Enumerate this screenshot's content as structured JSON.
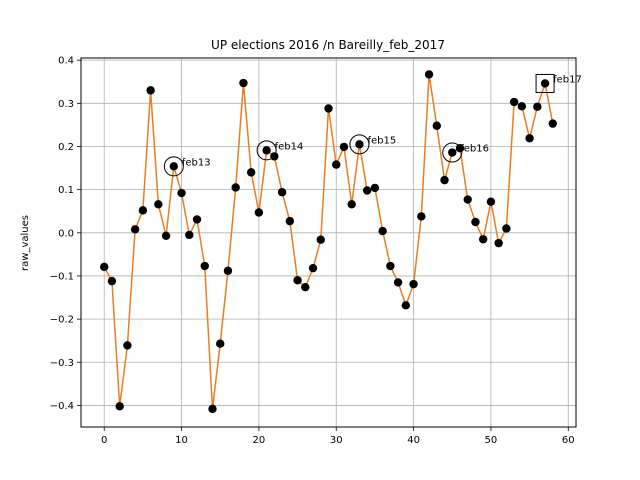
{
  "chart_data": {
    "type": "line",
    "title": "UP elections 2016 /n Bareilly_feb_2017",
    "xlabel": "",
    "ylabel": "raw_values",
    "xlim": [
      -3,
      61
    ],
    "ylim": [
      -0.45,
      0.405
    ],
    "xticks": [
      0,
      10,
      20,
      30,
      40,
      50,
      60
    ],
    "yticks": [
      -0.4,
      -0.3,
      -0.2,
      -0.1,
      0.0,
      0.1,
      0.2,
      0.3,
      0.4
    ],
    "xtick_labels": [
      "0",
      "10",
      "20",
      "30",
      "40",
      "50",
      "60"
    ],
    "ytick_labels": [
      "−0.4",
      "−0.3",
      "−0.2",
      "−0.1",
      "0.0",
      "0.1",
      "0.2",
      "0.3",
      "0.4"
    ],
    "grid": true,
    "line_color": "#e87d25",
    "marker_color": "#000000",
    "x": [
      0,
      1,
      2,
      3,
      4,
      5,
      6,
      7,
      8,
      9,
      10,
      11,
      12,
      13,
      14,
      15,
      16,
      17,
      18,
      19,
      20,
      21,
      22,
      23,
      24,
      25,
      26,
      27,
      28,
      29,
      30,
      31,
      32,
      33,
      34,
      35,
      36,
      37,
      38,
      39,
      40,
      41,
      42,
      43,
      44,
      45,
      46,
      47,
      48,
      49,
      50,
      51,
      52,
      53,
      54,
      55,
      56,
      57,
      58
    ],
    "values": [
      -0.079,
      -0.112,
      -0.402,
      -0.261,
      0.008,
      0.052,
      0.33,
      0.066,
      -0.007,
      0.154,
      0.092,
      -0.005,
      0.031,
      -0.077,
      -0.408,
      -0.257,
      -0.088,
      0.105,
      0.347,
      0.14,
      0.047,
      0.191,
      0.177,
      0.094,
      0.027,
      -0.11,
      -0.126,
      -0.082,
      -0.016,
      0.288,
      0.158,
      0.199,
      0.066,
      0.205,
      0.098,
      0.104,
      0.004,
      -0.077,
      -0.115,
      -0.168,
      -0.119,
      0.038,
      0.367,
      0.248,
      0.122,
      0.186,
      0.196,
      0.077,
      0.025,
      -0.015,
      0.072,
      -0.024,
      0.01,
      0.303,
      0.293,
      0.219,
      0.292,
      0.346,
      0.253
    ],
    "annotations": [
      {
        "label": "feb13",
        "x": 9,
        "y": 0.154,
        "marker": "circle"
      },
      {
        "label": "feb14",
        "x": 21,
        "y": 0.191,
        "marker": "circle"
      },
      {
        "label": "feb15",
        "x": 33,
        "y": 0.205,
        "marker": "circle"
      },
      {
        "label": "feb16",
        "x": 45,
        "y": 0.186,
        "marker": "circle"
      },
      {
        "label": "feb17",
        "x": 57,
        "y": 0.346,
        "marker": "square"
      }
    ]
  }
}
